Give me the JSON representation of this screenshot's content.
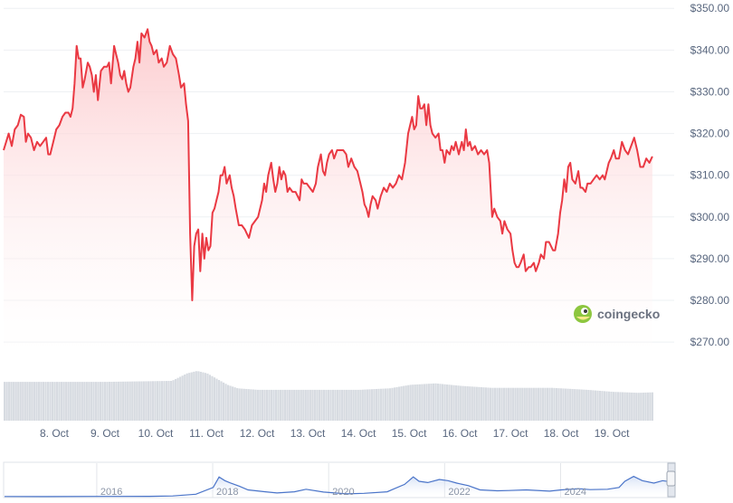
{
  "chart_data": {
    "type": "area",
    "y_tick_labels": [
      "$350.00",
      "$340.00",
      "$330.00",
      "$320.00",
      "$310.00",
      "$300.00",
      "$290.00",
      "$280.00",
      "$270.00"
    ],
    "y_ticks": [
      350,
      340,
      330,
      320,
      310,
      300,
      290,
      280,
      270
    ],
    "ylim": [
      267,
      352
    ],
    "x_tick_labels": [
      "8. Oct",
      "9. Oct",
      "10. Oct",
      "11. Oct",
      "12. Oct",
      "13. Oct",
      "14. Oct",
      "15. Oct",
      "16. Oct",
      "17. Oct",
      "18. Oct",
      "19. Oct"
    ],
    "x_tick_days": [
      1,
      2,
      3,
      4,
      5,
      6,
      7,
      8,
      9,
      10,
      11,
      12
    ],
    "xlim": [
      0.0,
      13.23
    ],
    "price": [
      [
        0.0,
        316
      ],
      [
        0.05,
        318
      ],
      [
        0.1,
        320
      ],
      [
        0.16,
        317
      ],
      [
        0.22,
        321
      ],
      [
        0.28,
        322
      ],
      [
        0.34,
        324.5
      ],
      [
        0.4,
        324
      ],
      [
        0.44,
        318
      ],
      [
        0.48,
        320
      ],
      [
        0.54,
        319
      ],
      [
        0.6,
        316
      ],
      [
        0.66,
        318
      ],
      [
        0.72,
        317
      ],
      [
        0.78,
        318
      ],
      [
        0.84,
        319
      ],
      [
        0.88,
        315
      ],
      [
        0.92,
        315
      ],
      [
        0.98,
        318
      ],
      [
        1.04,
        321
      ],
      [
        1.1,
        322
      ],
      [
        1.16,
        324
      ],
      [
        1.22,
        325
      ],
      [
        1.28,
        325
      ],
      [
        1.32,
        324
      ],
      [
        1.36,
        326
      ],
      [
        1.4,
        332
      ],
      [
        1.44,
        341
      ],
      [
        1.48,
        338
      ],
      [
        1.52,
        338
      ],
      [
        1.56,
        331
      ],
      [
        1.6,
        333
      ],
      [
        1.66,
        337
      ],
      [
        1.7,
        336
      ],
      [
        1.74,
        334
      ],
      [
        1.78,
        330
      ],
      [
        1.82,
        334
      ],
      [
        1.86,
        328
      ],
      [
        1.92,
        335
      ],
      [
        1.98,
        336
      ],
      [
        2.04,
        336
      ],
      [
        2.08,
        337
      ],
      [
        2.12,
        332
      ],
      [
        2.18,
        341
      ],
      [
        2.22,
        339
      ],
      [
        2.26,
        337
      ],
      [
        2.3,
        334
      ],
      [
        2.34,
        333
      ],
      [
        2.38,
        335
      ],
      [
        2.42,
        332
      ],
      [
        2.46,
        330
      ],
      [
        2.5,
        331
      ],
      [
        2.56,
        336
      ],
      [
        2.6,
        338
      ],
      [
        2.64,
        342
      ],
      [
        2.68,
        337
      ],
      [
        2.72,
        344
      ],
      [
        2.78,
        343
      ],
      [
        2.84,
        345
      ],
      [
        2.88,
        342
      ],
      [
        2.92,
        341
      ],
      [
        2.96,
        339
      ],
      [
        3.02,
        340
      ],
      [
        3.06,
        337
      ],
      [
        3.12,
        338
      ],
      [
        3.16,
        336
      ],
      [
        3.22,
        337
      ],
      [
        3.28,
        341
      ],
      [
        3.34,
        339
      ],
      [
        3.4,
        338
      ],
      [
        3.46,
        334
      ],
      [
        3.5,
        331
      ],
      [
        3.56,
        332
      ],
      [
        3.6,
        327
      ],
      [
        3.64,
        323
      ],
      [
        3.68,
        296
      ],
      [
        3.72,
        280
      ],
      [
        3.76,
        293
      ],
      [
        3.8,
        296
      ],
      [
        3.84,
        297
      ],
      [
        3.88,
        287
      ],
      [
        3.92,
        296
      ],
      [
        3.96,
        290
      ],
      [
        4.0,
        295
      ],
      [
        4.04,
        292
      ],
      [
        4.08,
        293
      ],
      [
        4.12,
        301
      ],
      [
        4.16,
        302
      ],
      [
        4.2,
        304
      ],
      [
        4.24,
        306
      ],
      [
        4.28,
        310
      ],
      [
        4.32,
        310
      ],
      [
        4.36,
        312
      ],
      [
        4.4,
        308
      ],
      [
        4.46,
        310
      ],
      [
        4.5,
        307
      ],
      [
        4.54,
        305
      ],
      [
        4.58,
        302
      ],
      [
        4.64,
        298
      ],
      [
        4.7,
        298
      ],
      [
        4.76,
        297
      ],
      [
        4.8,
        296
      ],
      [
        4.84,
        295
      ],
      [
        4.9,
        298
      ],
      [
        4.96,
        299
      ],
      [
        5.02,
        300
      ],
      [
        5.06,
        302
      ],
      [
        5.1,
        304
      ],
      [
        5.14,
        308
      ],
      [
        5.18,
        306
      ],
      [
        5.22,
        310
      ],
      [
        5.28,
        313
      ],
      [
        5.32,
        309
      ],
      [
        5.36,
        306
      ],
      [
        5.4,
        308
      ],
      [
        5.44,
        312
      ],
      [
        5.48,
        309
      ],
      [
        5.52,
        311
      ],
      [
        5.56,
        310
      ],
      [
        5.6,
        306
      ],
      [
        5.64,
        307
      ],
      [
        5.7,
        306
      ],
      [
        5.76,
        306
      ],
      [
        5.8,
        305
      ],
      [
        5.84,
        304
      ],
      [
        5.88,
        309
      ],
      [
        5.92,
        308
      ],
      [
        5.98,
        308
      ],
      [
        6.04,
        307
      ],
      [
        6.1,
        306
      ],
      [
        6.16,
        308
      ],
      [
        6.2,
        312
      ],
      [
        6.26,
        315
      ],
      [
        6.3,
        311
      ],
      [
        6.34,
        310
      ],
      [
        6.38,
        313
      ],
      [
        6.42,
        315
      ],
      [
        6.48,
        316
      ],
      [
        6.52,
        314
      ],
      [
        6.58,
        316
      ],
      [
        6.64,
        316
      ],
      [
        6.7,
        316
      ],
      [
        6.76,
        315
      ],
      [
        6.8,
        312
      ],
      [
        6.86,
        314
      ],
      [
        6.92,
        312
      ],
      [
        6.98,
        311
      ],
      [
        7.04,
        308
      ],
      [
        7.08,
        306
      ],
      [
        7.12,
        303
      ],
      [
        7.16,
        302
      ],
      [
        7.2,
        300
      ],
      [
        7.24,
        303
      ],
      [
        7.28,
        305
      ],
      [
        7.34,
        304
      ],
      [
        7.38,
        302
      ],
      [
        7.44,
        305
      ],
      [
        7.5,
        307
      ],
      [
        7.56,
        306
      ],
      [
        7.62,
        308
      ],
      [
        7.68,
        307
      ],
      [
        7.74,
        308
      ],
      [
        7.8,
        310
      ],
      [
        7.86,
        309
      ],
      [
        7.92,
        313
      ],
      [
        7.98,
        320
      ],
      [
        8.02,
        322
      ],
      [
        8.06,
        324
      ],
      [
        8.1,
        321
      ],
      [
        8.14,
        322
      ],
      [
        8.18,
        329
      ],
      [
        8.22,
        326
      ],
      [
        8.26,
        326
      ],
      [
        8.3,
        327
      ],
      [
        8.34,
        322
      ],
      [
        8.38,
        327
      ],
      [
        8.42,
        322
      ],
      [
        8.46,
        320
      ],
      [
        8.52,
        319
      ],
      [
        8.58,
        320
      ],
      [
        8.62,
        316
      ],
      [
        8.66,
        316
      ],
      [
        8.7,
        313
      ],
      [
        8.74,
        316
      ],
      [
        8.8,
        315
      ],
      [
        8.84,
        317
      ],
      [
        8.88,
        316
      ],
      [
        8.92,
        318
      ],
      [
        8.98,
        315
      ],
      [
        9.04,
        318
      ],
      [
        9.08,
        316
      ],
      [
        9.12,
        321
      ],
      [
        9.16,
        317
      ],
      [
        9.2,
        318
      ],
      [
        9.24,
        316
      ],
      [
        9.3,
        317
      ],
      [
        9.36,
        315
      ],
      [
        9.42,
        316
      ],
      [
        9.48,
        315
      ],
      [
        9.54,
        316
      ],
      [
        9.58,
        313
      ],
      [
        9.64,
        300
      ],
      [
        9.68,
        302
      ],
      [
        9.74,
        300
      ],
      [
        9.8,
        299
      ],
      [
        9.84,
        296
      ],
      [
        9.88,
        299
      ],
      [
        9.94,
        297
      ],
      [
        10.0,
        296
      ],
      [
        10.04,
        292
      ],
      [
        10.08,
        289
      ],
      [
        10.12,
        288
      ],
      [
        10.16,
        288
      ],
      [
        10.2,
        289
      ],
      [
        10.26,
        291
      ],
      [
        10.3,
        287
      ],
      [
        10.36,
        288
      ],
      [
        10.4,
        288
      ],
      [
        10.46,
        289
      ],
      [
        10.5,
        287
      ],
      [
        10.56,
        289
      ],
      [
        10.6,
        291
      ],
      [
        10.66,
        290
      ],
      [
        10.7,
        294
      ],
      [
        10.76,
        294
      ],
      [
        10.8,
        293
      ],
      [
        10.84,
        292
      ],
      [
        10.88,
        292
      ],
      [
        10.94,
        296
      ],
      [
        10.98,
        301
      ],
      [
        11.02,
        304
      ],
      [
        11.06,
        309
      ],
      [
        11.1,
        306
      ],
      [
        11.14,
        312
      ],
      [
        11.18,
        313
      ],
      [
        11.22,
        309
      ],
      [
        11.28,
        308
      ],
      [
        11.34,
        311
      ],
      [
        11.38,
        307
      ],
      [
        11.42,
        307
      ],
      [
        11.48,
        306
      ],
      [
        11.52,
        308
      ],
      [
        11.58,
        308
      ],
      [
        11.64,
        309
      ],
      [
        11.7,
        310
      ],
      [
        11.76,
        309
      ],
      [
        11.82,
        310
      ],
      [
        11.86,
        309
      ],
      [
        11.9,
        311
      ],
      [
        11.94,
        313
      ],
      [
        11.98,
        314
      ],
      [
        12.04,
        316
      ],
      [
        12.08,
        314
      ],
      [
        12.14,
        314
      ],
      [
        12.2,
        318
      ],
      [
        12.26,
        316
      ],
      [
        12.32,
        315
      ],
      [
        12.38,
        317
      ],
      [
        12.44,
        319
      ],
      [
        12.5,
        316
      ],
      [
        12.56,
        312
      ],
      [
        12.62,
        312
      ],
      [
        12.68,
        314
      ],
      [
        12.74,
        313
      ],
      [
        12.8,
        314.5
      ]
    ],
    "volume_profile": [
      [
        0.0,
        0.78
      ],
      [
        2.0,
        0.78
      ],
      [
        3.3,
        0.8
      ],
      [
        3.6,
        0.95
      ],
      [
        3.8,
        1.0
      ],
      [
        4.0,
        0.95
      ],
      [
        4.4,
        0.72
      ],
      [
        4.6,
        0.65
      ],
      [
        5.0,
        0.62
      ],
      [
        6.0,
        0.62
      ],
      [
        7.0,
        0.62
      ],
      [
        7.6,
        0.65
      ],
      [
        8.0,
        0.72
      ],
      [
        8.5,
        0.75
      ],
      [
        9.0,
        0.7
      ],
      [
        9.6,
        0.66
      ],
      [
        10.2,
        0.66
      ],
      [
        10.8,
        0.66
      ],
      [
        11.5,
        0.62
      ],
      [
        12.0,
        0.58
      ],
      [
        12.5,
        0.56
      ],
      [
        12.8,
        0.57
      ]
    ],
    "navigator": {
      "x_tick_labels": [
        "2016",
        "2018",
        "2020",
        "2022",
        "2024"
      ],
      "x_tick_years": [
        2016,
        2018,
        2020,
        2022,
        2024
      ],
      "xlim": [
        2014.3,
        2025.85
      ],
      "ylim": [
        0,
        500
      ],
      "series": [
        [
          2014.3,
          3
        ],
        [
          2015.0,
          2
        ],
        [
          2016.0,
          4
        ],
        [
          2016.8,
          6
        ],
        [
          2017.2,
          12
        ],
        [
          2017.6,
          40
        ],
        [
          2017.9,
          150
        ],
        [
          2018.0,
          320
        ],
        [
          2018.1,
          260
        ],
        [
          2018.2,
          220
        ],
        [
          2018.35,
          170
        ],
        [
          2018.5,
          110
        ],
        [
          2018.8,
          80
        ],
        [
          2019.0,
          60
        ],
        [
          2019.3,
          80
        ],
        [
          2019.5,
          120
        ],
        [
          2019.8,
          75
        ],
        [
          2020.0,
          60
        ],
        [
          2020.2,
          45
        ],
        [
          2020.5,
          55
        ],
        [
          2020.9,
          80
        ],
        [
          2021.0,
          120
        ],
        [
          2021.2,
          200
        ],
        [
          2021.35,
          320
        ],
        [
          2021.45,
          250
        ],
        [
          2021.6,
          230
        ],
        [
          2021.8,
          280
        ],
        [
          2021.95,
          260
        ],
        [
          2022.1,
          220
        ],
        [
          2022.3,
          180
        ],
        [
          2022.5,
          110
        ],
        [
          2022.8,
          95
        ],
        [
          2023.0,
          100
        ],
        [
          2023.3,
          110
        ],
        [
          2023.7,
          90
        ],
        [
          2023.9,
          110
        ],
        [
          2024.2,
          130
        ],
        [
          2024.4,
          115
        ],
        [
          2024.7,
          120
        ],
        [
          2024.9,
          150
        ],
        [
          2025.0,
          250
        ],
        [
          2025.15,
          330
        ],
        [
          2025.3,
          260
        ],
        [
          2025.5,
          220
        ],
        [
          2025.65,
          260
        ],
        [
          2025.8,
          240
        ],
        [
          2025.85,
          230
        ]
      ]
    }
  },
  "brand": {
    "logo_text": "coingecko",
    "logo_icon": "gecko-icon",
    "colors": {
      "line": "#ea3943",
      "area_top": "#fbd3d5",
      "area_bottom": "#ffffff",
      "volume": "#d7dbe1",
      "navigator_line": "#4a74c9"
    }
  }
}
